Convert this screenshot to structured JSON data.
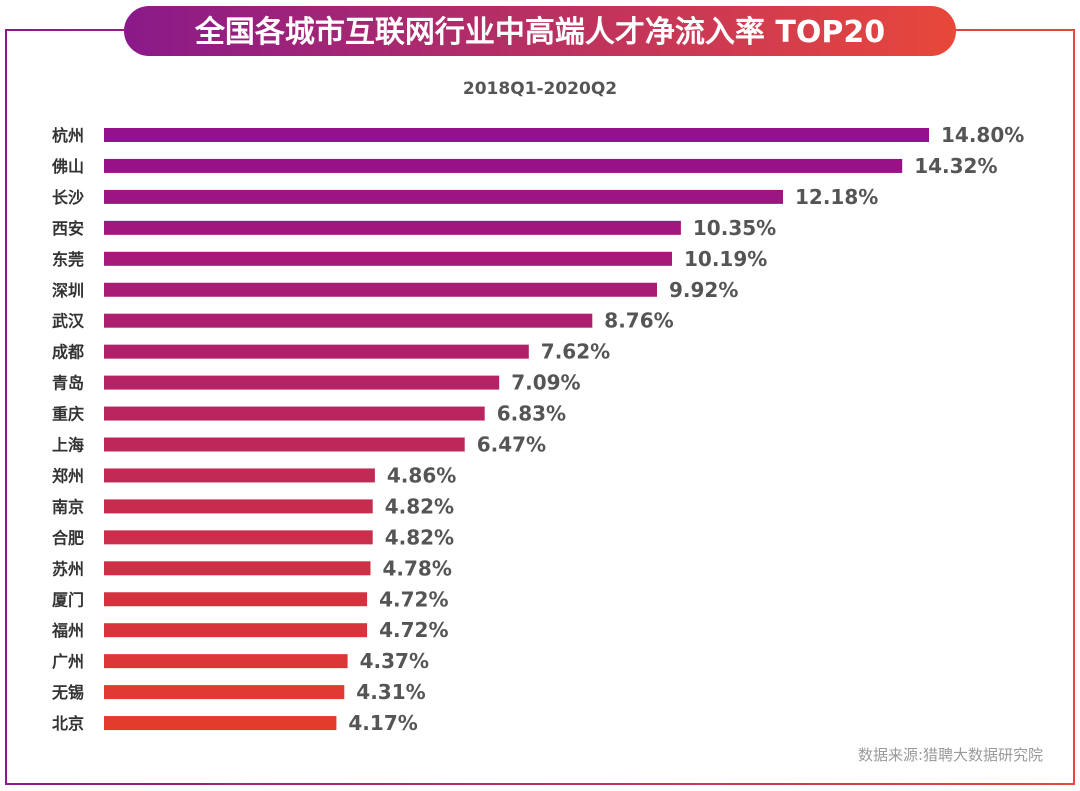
{
  "title": "全国各城市互联网行业中高端人才净流入率 TOP20",
  "subtitle": "2018Q1-2020Q2",
  "source": "数据来源:猎聘大数据研究院",
  "colors": {
    "frame_left": "#8a1a8a",
    "frame_right": "#e8473a",
    "title_left": "#8a1a8a",
    "title_right": "#e8473a",
    "bar_top": "#94108c",
    "bar_bottom": "#e43c2c",
    "highlight_value": "#8a1a8a"
  },
  "chart_data": {
    "type": "bar",
    "orientation": "horizontal",
    "title": "全国各城市互联网行业中高端人才净流入率 TOP20",
    "subtitle": "2018Q1-2020Q2",
    "categories": [
      "杭州",
      "佛山",
      "长沙",
      "西安",
      "东莞",
      "深圳",
      "武汉",
      "成都",
      "青岛",
      "重庆",
      "上海",
      "郑州",
      "南京",
      "合肥",
      "苏州",
      "厦门",
      "福州",
      "广州",
      "无锡",
      "北京"
    ],
    "values": [
      14.8,
      14.32,
      12.18,
      10.35,
      10.19,
      9.92,
      8.76,
      7.62,
      7.09,
      6.83,
      6.47,
      4.86,
      4.82,
      4.82,
      4.78,
      4.72,
      4.72,
      4.37,
      4.31,
      4.17
    ],
    "value_labels": [
      "14.80%",
      "14.32%",
      "12.18%",
      "10.35%",
      "10.19%",
      "9.92%",
      "8.76%",
      "7.62%",
      "7.09%",
      "6.83%",
      "6.47%",
      "4.86%",
      "4.82%",
      "4.82%",
      "4.78%",
      "4.72%",
      "4.72%",
      "4.37%",
      "4.31%",
      "4.17%"
    ],
    "unit": "%",
    "xlim": [
      0,
      14.8
    ],
    "grid": false,
    "legend": "none"
  }
}
